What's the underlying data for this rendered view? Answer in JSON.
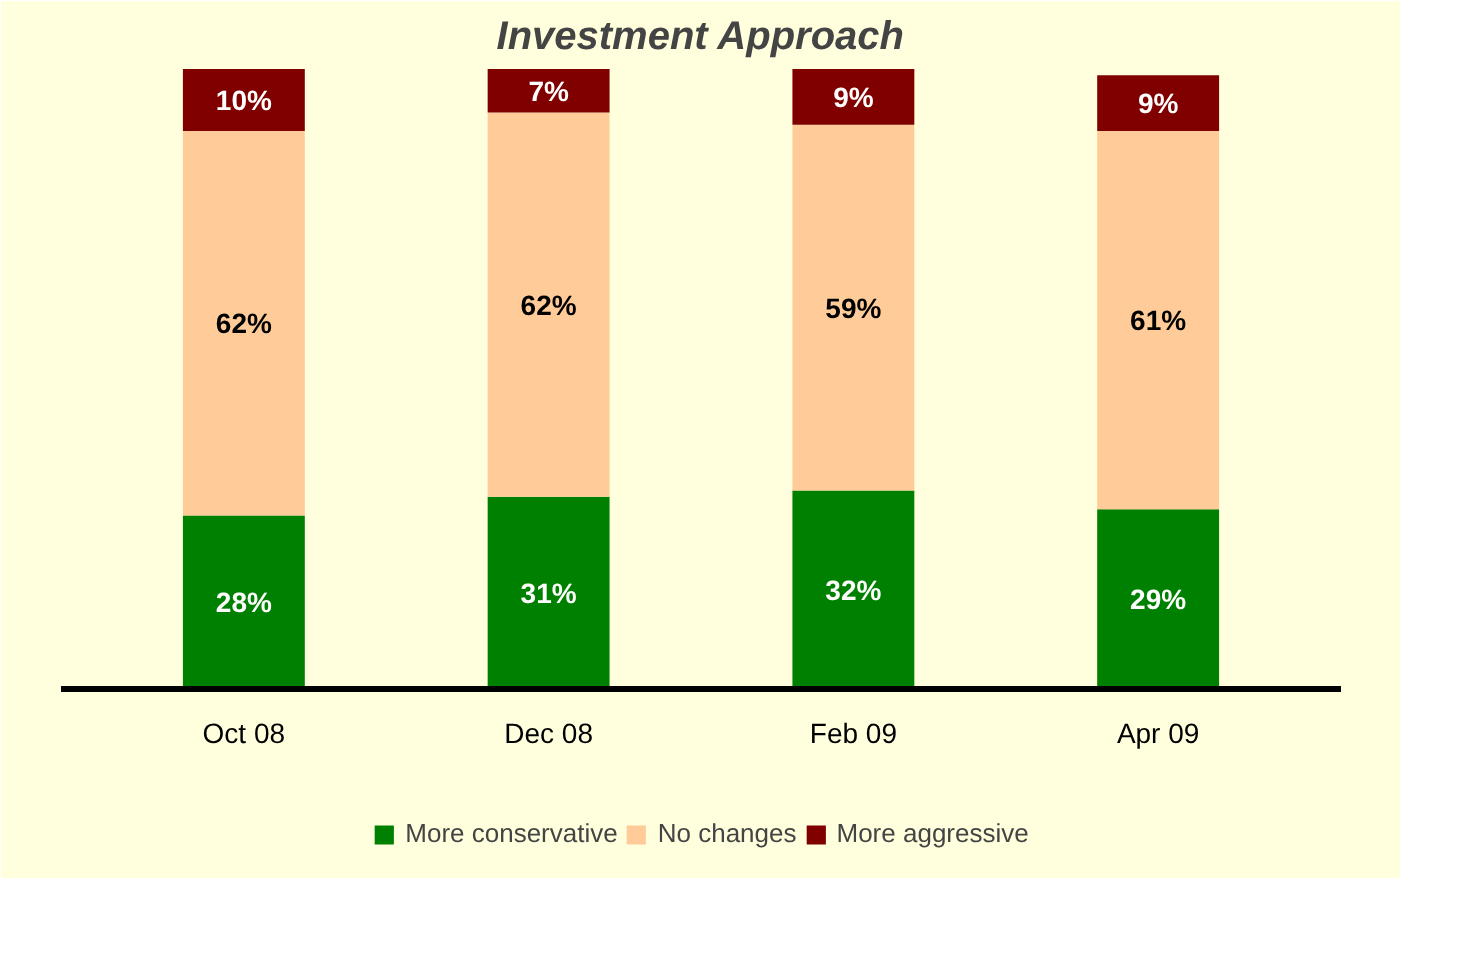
{
  "chart_data": {
    "type": "bar",
    "title": "Investment Approach",
    "stacked": true,
    "legend": "bottom",
    "grid": false,
    "categories": [
      "Oct 08",
      "Dec 08",
      "Feb 09",
      "Apr 09"
    ],
    "series": [
      {
        "name": "More conservative",
        "color": "#008000",
        "values": [
          28,
          31,
          32,
          29
        ],
        "value_labels": [
          "28%",
          "31%",
          "32%",
          "29%"
        ]
      },
      {
        "name": "No changes",
        "color": "#ffcc99",
        "values": [
          62,
          62,
          59,
          61
        ],
        "value_labels": [
          "62%",
          "62%",
          "59%",
          "61%"
        ]
      },
      {
        "name": "More aggressive",
        "color": "#800000",
        "values": [
          10,
          7,
          9,
          9
        ],
        "value_labels": [
          "10%",
          "7%",
          "9%",
          "9%"
        ]
      }
    ]
  }
}
